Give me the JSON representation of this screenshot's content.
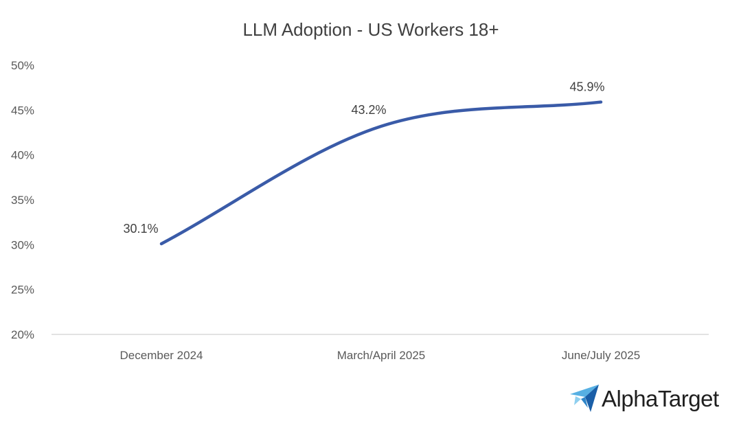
{
  "chart_data": {
    "type": "line",
    "title": "LLM Adoption - US Workers 18+",
    "xlabel": "",
    "ylabel": "",
    "categories": [
      "December 2024",
      "March/April 2025",
      "June/July 2025"
    ],
    "series": [
      {
        "values": [
          30.1,
          43.2,
          45.9
        ],
        "labels": [
          "30.1%",
          "43.2%",
          "45.9%"
        ],
        "color": "#3A5BA8"
      }
    ],
    "ylim": [
      20,
      50
    ],
    "yticks": [
      {
        "value": 20,
        "label": "20%"
      },
      {
        "value": 25,
        "label": "25%"
      },
      {
        "value": 30,
        "label": "30%"
      },
      {
        "value": 35,
        "label": "35%"
      },
      {
        "value": 40,
        "label": "40%"
      },
      {
        "value": 45,
        "label": "45%"
      },
      {
        "value": 50,
        "label": "50%"
      }
    ],
    "grid": false,
    "smooth": true
  },
  "brand": {
    "name": "AlphaTarget",
    "icon": "paper-plane-icon",
    "colors": [
      "#1a5fa8",
      "#2f86c9",
      "#57b0e3",
      "#8fcfef"
    ]
  }
}
